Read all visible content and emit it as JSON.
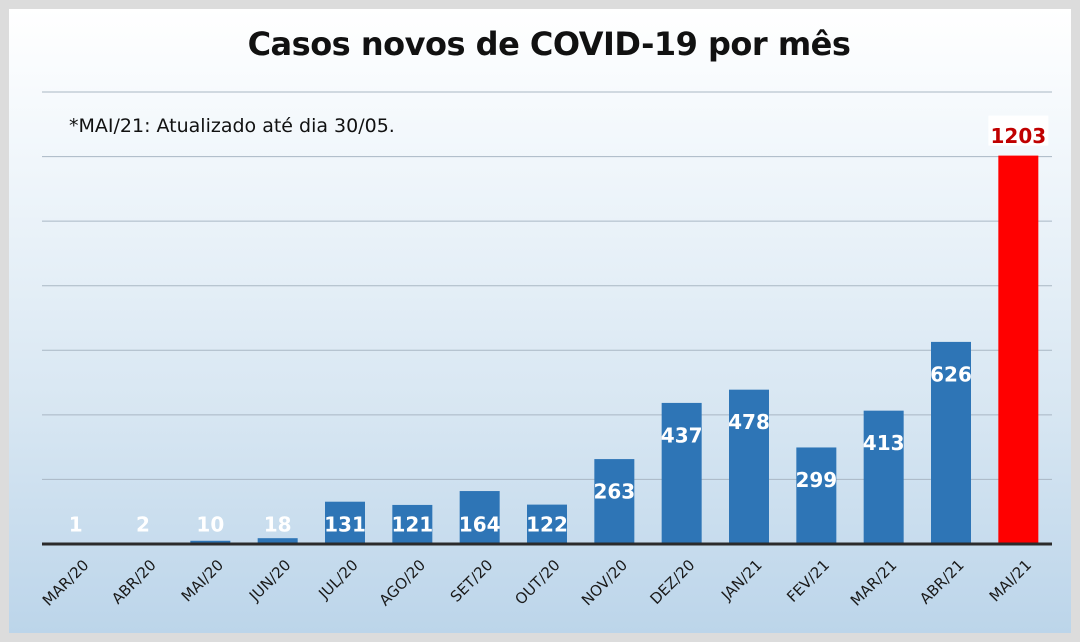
{
  "title": "Casos novos de COVID-19 por mês",
  "note": "*MAI/21: Atualizado até dia 30/05.",
  "colors": {
    "bar": "#2e75b6",
    "highlight_bar": "#ff0000",
    "highlight_label": "#c00000",
    "grid": "#a9b7c4",
    "axis": "#2b2b2b"
  },
  "chart_data": {
    "type": "bar",
    "title": "Casos novos de COVID-19 por mês",
    "xlabel": "",
    "ylabel": "",
    "categories": [
      "MAR/20",
      "ABR/20",
      "MAI/20",
      "JUN/20",
      "JUL/20",
      "AGO/20",
      "SET/20",
      "OUT/20",
      "NOV/20",
      "DEZ/20",
      "JAN/21",
      "FEV/21",
      "MAR/21",
      "ABR/21",
      "MAI/21"
    ],
    "values": [
      1,
      2,
      10,
      18,
      131,
      121,
      164,
      122,
      263,
      437,
      478,
      299,
      413,
      626,
      1203
    ],
    "highlight_category": "MAI/21",
    "ylim": [
      0,
      1400
    ],
    "grid": true,
    "legend": false
  }
}
